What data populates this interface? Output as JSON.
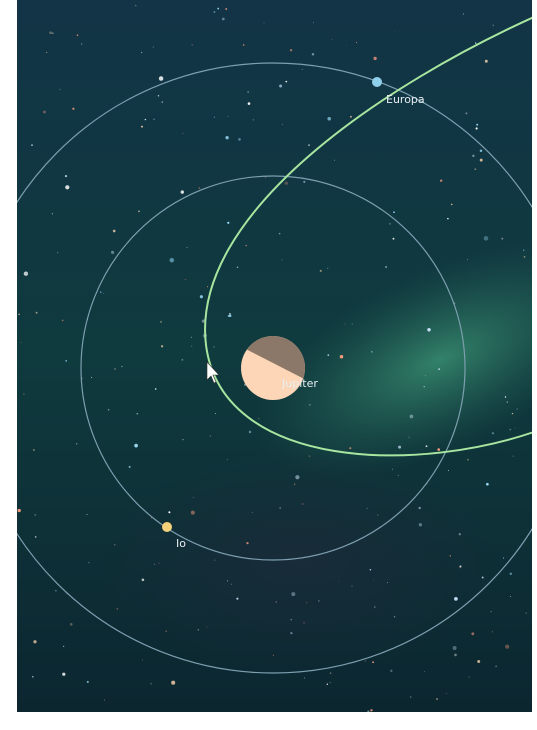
{
  "bodies": [
    {
      "label": "Europa"
    },
    {
      "label": "Jupiter"
    },
    {
      "label": "Io"
    }
  ]
}
